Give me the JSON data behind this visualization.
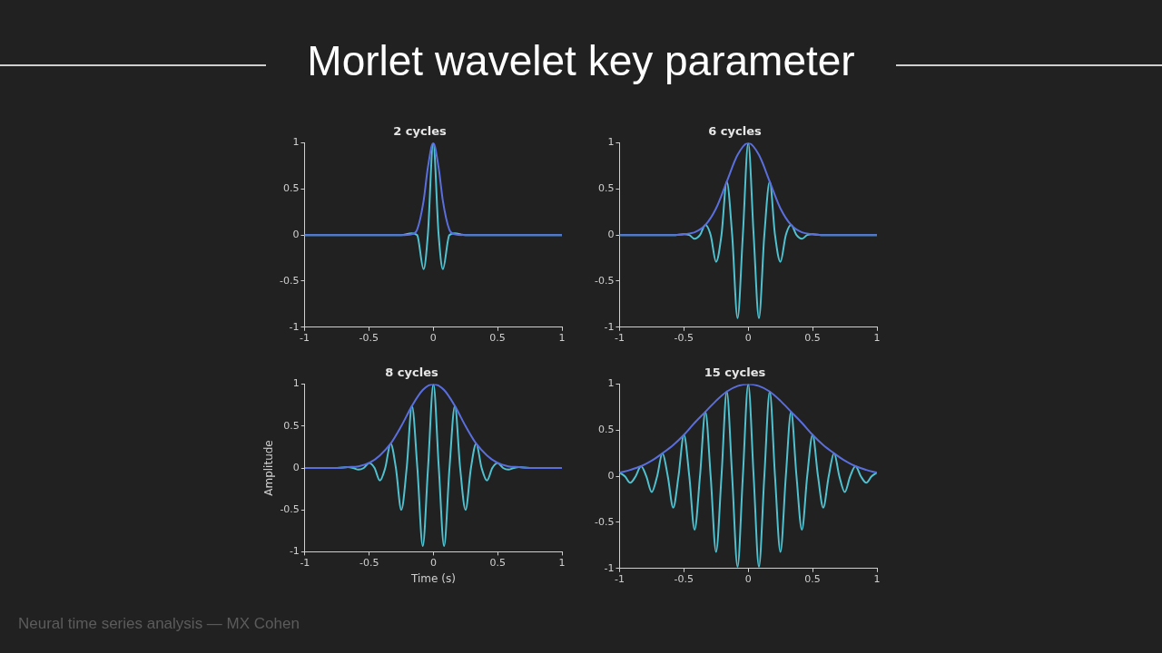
{
  "chart_data": [
    {
      "type": "other",
      "title": "Morlet wavelet key parameter"
    },
    {
      "type": "line",
      "title": "2 cycles",
      "xlim": [
        -1,
        1
      ],
      "xticks": [
        -1,
        -0.5,
        0,
        0.5,
        1
      ],
      "ylim": [
        -1,
        1
      ],
      "yticks": [
        -1,
        -0.5,
        0,
        0.5,
        1
      ],
      "grid": false,
      "legend": false,
      "marker": "none",
      "line_style": "solid",
      "series": [
        {
          "color": "#5a6fdc",
          "x": [
            -1,
            -0.25,
            -0.167,
            -0.125,
            -0.075,
            -0.042,
            0,
            0.042,
            0.075,
            0.125,
            0.167,
            0.25,
            1
          ],
          "values": [
            0,
            0,
            0.01,
            0.06,
            0.37,
            0.73,
            1,
            0.73,
            0.37,
            0.06,
            0.01,
            0,
            0
          ]
        },
        {
          "color": "#4fc1cf",
          "x": [
            -1,
            -0.25,
            -0.167,
            -0.125,
            -0.075,
            -0.042,
            0,
            0.042,
            0.075,
            0.125,
            0.167,
            0.25,
            1
          ],
          "values": [
            0,
            0,
            0.02,
            0,
            -0.37,
            0,
            1,
            0,
            -0.37,
            0,
            0.02,
            0,
            0
          ]
        }
      ]
    },
    {
      "type": "line",
      "title": "6 cycles",
      "xlim": [
        -1,
        1
      ],
      "xticks": [
        -1,
        -0.5,
        0,
        0.5,
        1
      ],
      "ylim": [
        -1,
        1
      ],
      "yticks": [
        -1,
        -0.5,
        0,
        0.5,
        1
      ],
      "grid": false,
      "legend": false,
      "marker": "none",
      "line_style": "solid",
      "series": [
        {
          "color": "#5a6fdc",
          "x": [
            -1,
            -0.667,
            -0.583,
            -0.5,
            -0.417,
            -0.333,
            -0.25,
            -0.167,
            -0.083,
            0,
            0.083,
            0.167,
            0.25,
            0.333,
            0.417,
            0.5,
            0.583,
            0.667,
            1
          ],
          "values": [
            0,
            0,
            0,
            0.01,
            0.03,
            0.11,
            0.29,
            0.58,
            0.87,
            1,
            0.87,
            0.58,
            0.29,
            0.11,
            0.03,
            0.01,
            0,
            0,
            0
          ]
        },
        {
          "color": "#4fc1cf",
          "x": [
            -1,
            -0.583,
            -0.5,
            -0.458,
            -0.417,
            -0.375,
            -0.333,
            -0.292,
            -0.25,
            -0.208,
            -0.167,
            -0.125,
            -0.083,
            -0.042,
            0,
            0.042,
            0.083,
            0.125,
            0.167,
            0.208,
            0.25,
            0.292,
            0.333,
            0.375,
            0.417,
            0.458,
            0.5,
            0.583,
            1
          ],
          "values": [
            0,
            0,
            0.01,
            0,
            -0.04,
            0,
            0.11,
            0,
            -0.29,
            0,
            0.58,
            0,
            -0.9,
            0,
            1,
            0,
            -0.9,
            0,
            0.58,
            0,
            -0.29,
            0,
            0.11,
            0,
            -0.04,
            0,
            0.01,
            0,
            0
          ]
        }
      ]
    },
    {
      "type": "line",
      "title": "8 cycles",
      "xlabel": "Time (s)",
      "ylabel": "Amplitude",
      "xlim": [
        -1,
        1
      ],
      "xticks": [
        -1,
        -0.5,
        0,
        0.5,
        1
      ],
      "ylim": [
        -1,
        1
      ],
      "yticks": [
        -1,
        -0.5,
        0,
        0.5,
        1
      ],
      "grid": false,
      "legend": false,
      "marker": "none",
      "line_style": "solid",
      "series": [
        {
          "color": "#5a6fdc",
          "x": [
            -1,
            -0.833,
            -0.75,
            -0.667,
            -0.583,
            -0.5,
            -0.417,
            -0.333,
            -0.25,
            -0.167,
            -0.083,
            0,
            0.083,
            0.167,
            0.25,
            0.333,
            0.417,
            0.5,
            0.583,
            0.667,
            0.75,
            0.833,
            1
          ],
          "values": [
            0,
            0,
            0,
            0.01,
            0.02,
            0.06,
            0.15,
            0.29,
            0.5,
            0.74,
            0.93,
            1,
            0.93,
            0.74,
            0.5,
            0.29,
            0.15,
            0.06,
            0.02,
            0.01,
            0,
            0,
            0
          ]
        },
        {
          "color": "#4fc1cf",
          "x": [
            -1,
            -0.75,
            -0.667,
            -0.625,
            -0.583,
            -0.542,
            -0.5,
            -0.458,
            -0.417,
            -0.375,
            -0.333,
            -0.292,
            -0.25,
            -0.208,
            -0.167,
            -0.125,
            -0.083,
            -0.042,
            0,
            0.042,
            0.083,
            0.125,
            0.167,
            0.208,
            0.25,
            0.292,
            0.333,
            0.375,
            0.417,
            0.458,
            0.5,
            0.542,
            0.583,
            0.625,
            0.667,
            0.75,
            1
          ],
          "values": [
            0,
            0,
            0.01,
            0,
            -0.02,
            0,
            0.06,
            0,
            -0.15,
            0,
            0.29,
            0,
            -0.5,
            0,
            0.74,
            0,
            -0.93,
            0,
            1,
            0,
            -0.93,
            0,
            0.74,
            0,
            -0.5,
            0,
            0.29,
            0,
            -0.15,
            0,
            0.06,
            0,
            -0.02,
            0,
            0.01,
            0,
            0
          ]
        }
      ]
    },
    {
      "type": "line",
      "title": "15 cycles",
      "xlim": [
        -1,
        1
      ],
      "xticks": [
        -1,
        -0.5,
        0,
        0.5,
        1
      ],
      "ylim": [
        -1,
        1
      ],
      "yticks": [
        -1,
        -0.5,
        0,
        0.5,
        1
      ],
      "grid": false,
      "legend": false,
      "marker": "none",
      "line_style": "solid",
      "series": [
        {
          "color": "#5a6fdc",
          "x": [
            -1,
            -0.917,
            -0.833,
            -0.75,
            -0.667,
            -0.583,
            -0.5,
            -0.417,
            -0.333,
            -0.25,
            -0.167,
            -0.083,
            0,
            0.083,
            0.167,
            0.25,
            0.333,
            0.417,
            0.5,
            0.583,
            0.667,
            0.75,
            0.833,
            0.917,
            1
          ],
          "values": [
            0.04,
            0.07,
            0.11,
            0.17,
            0.25,
            0.34,
            0.45,
            0.58,
            0.7,
            0.82,
            0.92,
            0.98,
            1,
            0.98,
            0.92,
            0.82,
            0.7,
            0.58,
            0.45,
            0.34,
            0.25,
            0.17,
            0.11,
            0.07,
            0.04
          ]
        },
        {
          "color": "#4fc1cf",
          "x": [
            -1,
            -0.958,
            -0.917,
            -0.875,
            -0.833,
            -0.792,
            -0.75,
            -0.708,
            -0.667,
            -0.625,
            -0.583,
            -0.542,
            -0.5,
            -0.458,
            -0.417,
            -0.375,
            -0.333,
            -0.292,
            -0.25,
            -0.208,
            -0.167,
            -0.125,
            -0.083,
            -0.042,
            0,
            0.042,
            0.083,
            0.125,
            0.167,
            0.208,
            0.25,
            0.292,
            0.333,
            0.375,
            0.417,
            0.458,
            0.5,
            0.542,
            0.583,
            0.625,
            0.667,
            0.708,
            0.75,
            0.792,
            0.833,
            0.875,
            0.917,
            0.958,
            1
          ],
          "values": [
            0.04,
            0,
            -0.07,
            0,
            0.11,
            0,
            -0.17,
            0,
            0.25,
            0,
            -0.34,
            0,
            0.45,
            0,
            -0.58,
            0,
            0.7,
            0,
            -0.82,
            0,
            0.92,
            0,
            -0.98,
            0,
            1,
            0,
            -0.98,
            0,
            0.92,
            0,
            -0.82,
            0,
            0.7,
            0,
            -0.58,
            0,
            0.45,
            0,
            -0.34,
            0,
            0.25,
            0,
            -0.17,
            0,
            0.11,
            0,
            -0.07,
            0,
            0.04
          ]
        }
      ]
    },
    {
      "type": "other",
      "annotations": [
        "Neural time series analysis — MX Cohen"
      ]
    }
  ]
}
